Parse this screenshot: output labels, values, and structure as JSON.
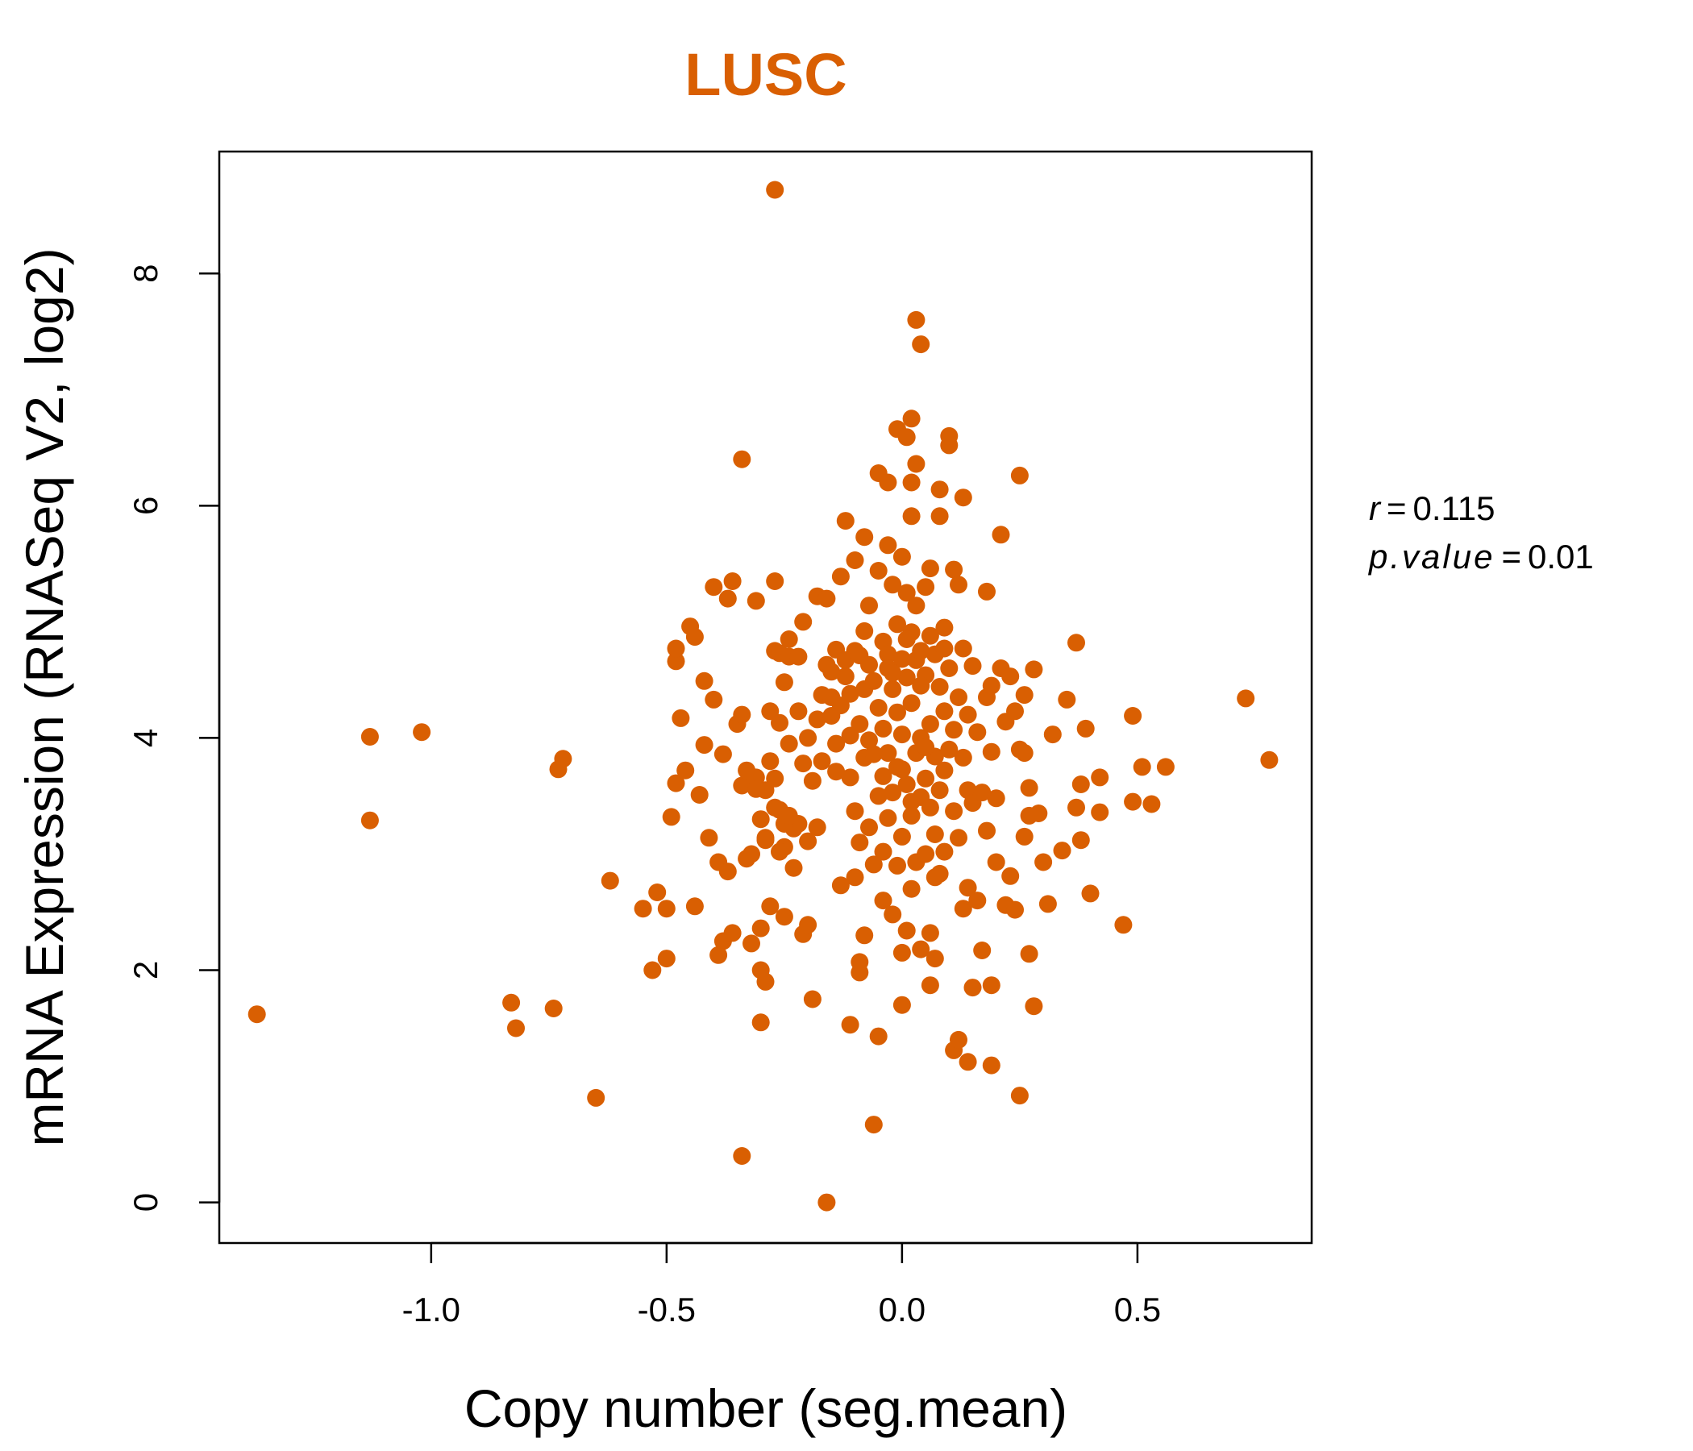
{
  "chart_data": {
    "type": "scatter",
    "title": "LUSC",
    "xlabel": "Copy number (seg.mean)",
    "ylabel": "mRNA Expression (RNASeq V2, log2)",
    "xlim": [
      -1.45,
      0.87
    ],
    "ylim": [
      -0.35,
      9.05
    ],
    "x_ticks": [
      -1.0,
      -0.5,
      0.0,
      0.5
    ],
    "x_tick_labels": [
      "-1.0",
      "-0.5",
      "0.0",
      "0.5"
    ],
    "y_ticks": [
      0,
      2,
      4,
      6,
      8
    ],
    "y_tick_labels": [
      "0",
      "2",
      "4",
      "6",
      "8"
    ],
    "grid": false,
    "legend": "none",
    "color": "#d95f02",
    "annotations": {
      "r_label": "r",
      "r_value": "0.115",
      "p_label": "p.value",
      "p_value": "0.01"
    },
    "points": [
      [
        -1.37,
        1.62
      ],
      [
        -1.13,
        4.01
      ],
      [
        -1.13,
        3.29
      ],
      [
        -1.02,
        4.05
      ],
      [
        -0.83,
        1.72
      ],
      [
        -0.82,
        1.5
      ],
      [
        -0.74,
        1.67
      ],
      [
        -0.73,
        3.73
      ],
      [
        -0.72,
        3.82
      ],
      [
        -0.65,
        0.9
      ],
      [
        -0.62,
        2.77
      ],
      [
        -0.55,
        2.53
      ],
      [
        -0.53,
        2.0
      ],
      [
        -0.52,
        2.67
      ],
      [
        -0.5,
        2.1
      ],
      [
        -0.5,
        2.53
      ],
      [
        -0.49,
        3.32
      ],
      [
        -0.48,
        3.61
      ],
      [
        -0.48,
        4.66
      ],
      [
        -0.48,
        4.77
      ],
      [
        -0.47,
        4.17
      ],
      [
        -0.46,
        3.72
      ],
      [
        -0.45,
        4.96
      ],
      [
        -0.44,
        4.87
      ],
      [
        -0.44,
        2.55
      ],
      [
        -0.43,
        3.51
      ],
      [
        -0.42,
        3.94
      ],
      [
        -0.42,
        4.49
      ],
      [
        -0.41,
        3.14
      ],
      [
        -0.4,
        5.3
      ],
      [
        -0.4,
        4.33
      ],
      [
        -0.39,
        2.13
      ],
      [
        -0.39,
        2.93
      ],
      [
        -0.38,
        2.25
      ],
      [
        -0.38,
        3.86
      ],
      [
        -0.37,
        5.2
      ],
      [
        -0.37,
        2.85
      ],
      [
        -0.36,
        5.35
      ],
      [
        -0.36,
        2.32
      ],
      [
        -0.35,
        4.12
      ],
      [
        -0.34,
        6.4
      ],
      [
        -0.34,
        3.59
      ],
      [
        -0.34,
        4.2
      ],
      [
        -0.33,
        2.96
      ],
      [
        -0.33,
        3.72
      ],
      [
        -0.32,
        3.0
      ],
      [
        -0.32,
        2.23
      ],
      [
        -0.31,
        5.18
      ],
      [
        -0.31,
        3.66
      ],
      [
        -0.3,
        3.3
      ],
      [
        -0.3,
        2.36
      ],
      [
        -0.3,
        1.55
      ],
      [
        -0.3,
        2.0
      ],
      [
        -0.29,
        1.9
      ],
      [
        -0.29,
        3.14
      ],
      [
        -0.29,
        3.55
      ],
      [
        -0.28,
        3.8
      ],
      [
        -0.28,
        4.23
      ],
      [
        -0.28,
        2.55
      ],
      [
        -0.27,
        8.72
      ],
      [
        -0.27,
        5.35
      ],
      [
        -0.27,
        4.75
      ],
      [
        -0.27,
        3.65
      ],
      [
        -0.26,
        4.13
      ],
      [
        -0.26,
        4.73
      ],
      [
        -0.26,
        3.38
      ],
      [
        -0.25,
        2.46
      ],
      [
        -0.25,
        4.48
      ],
      [
        -0.25,
        3.06
      ],
      [
        -0.24,
        4.85
      ],
      [
        -0.24,
        4.7
      ],
      [
        -0.24,
        3.95
      ],
      [
        -0.23,
        3.22
      ],
      [
        -0.23,
        2.88
      ],
      [
        -0.22,
        4.23
      ],
      [
        -0.22,
        3.26
      ],
      [
        -0.21,
        5.0
      ],
      [
        -0.21,
        3.78
      ],
      [
        -0.21,
        2.31
      ],
      [
        -0.2,
        4.0
      ],
      [
        -0.2,
        3.11
      ],
      [
        -0.2,
        2.39
      ],
      [
        -0.19,
        1.75
      ],
      [
        -0.19,
        3.63
      ],
      [
        -0.18,
        5.22
      ],
      [
        -0.18,
        4.16
      ],
      [
        -0.18,
        3.23
      ],
      [
        -0.17,
        4.37
      ],
      [
        -0.17,
        3.8
      ],
      [
        -0.16,
        4.63
      ],
      [
        -0.16,
        5.2
      ],
      [
        -0.16,
        0.0
      ],
      [
        -0.15,
        4.19
      ],
      [
        -0.15,
        4.35
      ],
      [
        -0.14,
        3.71
      ],
      [
        -0.14,
        3.95
      ],
      [
        -0.14,
        4.76
      ],
      [
        -0.13,
        5.39
      ],
      [
        -0.13,
        4.28
      ],
      [
        -0.13,
        2.73
      ],
      [
        -0.12,
        5.87
      ],
      [
        -0.12,
        4.67
      ],
      [
        -0.12,
        4.53
      ],
      [
        -0.11,
        4.02
      ],
      [
        -0.11,
        4.38
      ],
      [
        -0.11,
        3.66
      ],
      [
        -0.11,
        1.53
      ],
      [
        -0.1,
        5.53
      ],
      [
        -0.1,
        4.75
      ],
      [
        -0.1,
        3.37
      ],
      [
        -0.1,
        2.8
      ],
      [
        -0.09,
        4.71
      ],
      [
        -0.09,
        3.1
      ],
      [
        -0.09,
        1.98
      ],
      [
        -0.09,
        2.07
      ],
      [
        -0.08,
        5.73
      ],
      [
        -0.08,
        4.92
      ],
      [
        -0.08,
        4.42
      ],
      [
        -0.08,
        3.83
      ],
      [
        -0.08,
        2.3
      ],
      [
        -0.07,
        5.14
      ],
      [
        -0.07,
        4.63
      ],
      [
        -0.07,
        3.98
      ],
      [
        -0.07,
        3.23
      ],
      [
        -0.06,
        4.49
      ],
      [
        -0.06,
        2.91
      ],
      [
        -0.06,
        0.67
      ],
      [
        -0.05,
        6.28
      ],
      [
        -0.05,
        5.44
      ],
      [
        -0.05,
        4.26
      ],
      [
        -0.05,
        3.5
      ],
      [
        -0.05,
        1.43
      ],
      [
        -0.04,
        4.83
      ],
      [
        -0.04,
        4.08
      ],
      [
        -0.04,
        3.67
      ],
      [
        -0.04,
        3.02
      ],
      [
        -0.04,
        2.6
      ],
      [
        -0.03,
        6.2
      ],
      [
        -0.03,
        5.66
      ],
      [
        -0.03,
        4.72
      ],
      [
        -0.03,
        3.87
      ],
      [
        -0.03,
        3.31
      ],
      [
        -0.02,
        5.32
      ],
      [
        -0.02,
        4.42
      ],
      [
        -0.02,
        3.53
      ],
      [
        -0.02,
        2.48
      ],
      [
        -0.01,
        6.66
      ],
      [
        -0.01,
        4.98
      ],
      [
        -0.01,
        4.22
      ],
      [
        -0.01,
        3.75
      ],
      [
        -0.01,
        2.9
      ],
      [
        0.0,
        5.56
      ],
      [
        0.0,
        4.68
      ],
      [
        0.0,
        4.03
      ],
      [
        0.0,
        3.15
      ],
      [
        0.0,
        2.15
      ],
      [
        0.0,
        1.7
      ],
      [
        0.01,
        6.59
      ],
      [
        0.01,
        5.25
      ],
      [
        0.01,
        4.52
      ],
      [
        0.01,
        3.6
      ],
      [
        0.01,
        2.34
      ],
      [
        0.02,
        6.75
      ],
      [
        0.02,
        6.2
      ],
      [
        0.02,
        5.91
      ],
      [
        0.02,
        4.91
      ],
      [
        0.02,
        4.3
      ],
      [
        0.02,
        3.33
      ],
      [
        0.02,
        2.7
      ],
      [
        0.03,
        7.6
      ],
      [
        0.03,
        6.36
      ],
      [
        0.03,
        5.14
      ],
      [
        0.03,
        4.67
      ],
      [
        0.03,
        3.87
      ],
      [
        0.03,
        2.93
      ],
      [
        0.04,
        7.39
      ],
      [
        0.04,
        4.0
      ],
      [
        0.04,
        3.49
      ],
      [
        0.04,
        2.18
      ],
      [
        0.05,
        5.3
      ],
      [
        0.05,
        4.54
      ],
      [
        0.05,
        3.65
      ],
      [
        0.05,
        3.0
      ],
      [
        0.06,
        5.46
      ],
      [
        0.06,
        4.88
      ],
      [
        0.06,
        4.12
      ],
      [
        0.06,
        3.4
      ],
      [
        0.06,
        2.32
      ],
      [
        0.06,
        1.87
      ],
      [
        0.07,
        4.72
      ],
      [
        0.07,
        3.84
      ],
      [
        0.07,
        3.17
      ],
      [
        0.07,
        2.1
      ],
      [
        0.08,
        6.14
      ],
      [
        0.08,
        5.91
      ],
      [
        0.08,
        4.44
      ],
      [
        0.08,
        3.55
      ],
      [
        0.08,
        2.83
      ],
      [
        0.09,
        4.95
      ],
      [
        0.09,
        4.23
      ],
      [
        0.09,
        3.72
      ],
      [
        0.09,
        3.02
      ],
      [
        0.1,
        6.52
      ],
      [
        0.1,
        6.6
      ],
      [
        0.1,
        4.6
      ],
      [
        0.1,
        3.9
      ],
      [
        0.11,
        5.45
      ],
      [
        0.11,
        4.07
      ],
      [
        0.11,
        3.37
      ],
      [
        0.11,
        1.31
      ],
      [
        0.12,
        5.32
      ],
      [
        0.12,
        4.35
      ],
      [
        0.12,
        3.14
      ],
      [
        0.12,
        1.4
      ],
      [
        0.13,
        6.07
      ],
      [
        0.13,
        4.77
      ],
      [
        0.13,
        3.83
      ],
      [
        0.13,
        2.53
      ],
      [
        0.14,
        4.2
      ],
      [
        0.14,
        3.55
      ],
      [
        0.14,
        2.71
      ],
      [
        0.14,
        1.21
      ],
      [
        0.15,
        4.62
      ],
      [
        0.15,
        3.44
      ],
      [
        0.15,
        1.85
      ],
      [
        0.16,
        4.05
      ],
      [
        0.16,
        2.6
      ],
      [
        0.17,
        3.53
      ],
      [
        0.17,
        2.17
      ],
      [
        0.18,
        4.35
      ],
      [
        0.18,
        5.26
      ],
      [
        0.18,
        3.2
      ],
      [
        0.19,
        4.45
      ],
      [
        0.19,
        3.88
      ],
      [
        0.19,
        1.87
      ],
      [
        0.19,
        1.18
      ],
      [
        0.2,
        3.48
      ],
      [
        0.2,
        2.93
      ],
      [
        0.21,
        5.75
      ],
      [
        0.21,
        4.6
      ],
      [
        0.22,
        2.56
      ],
      [
        0.22,
        4.14
      ],
      [
        0.23,
        2.81
      ],
      [
        0.23,
        4.53
      ],
      [
        0.24,
        4.23
      ],
      [
        0.24,
        2.52
      ],
      [
        0.25,
        3.9
      ],
      [
        0.25,
        0.92
      ],
      [
        0.25,
        6.26
      ],
      [
        0.26,
        3.15
      ],
      [
        0.26,
        3.87
      ],
      [
        0.26,
        4.37
      ],
      [
        0.27,
        2.14
      ],
      [
        0.27,
        3.33
      ],
      [
        0.27,
        3.57
      ],
      [
        0.28,
        4.59
      ],
      [
        0.28,
        1.69
      ],
      [
        0.29,
        3.35
      ],
      [
        0.3,
        2.93
      ],
      [
        0.31,
        2.57
      ],
      [
        0.32,
        4.03
      ],
      [
        0.34,
        3.03
      ],
      [
        0.35,
        4.33
      ],
      [
        0.37,
        3.4
      ],
      [
        0.37,
        4.82
      ],
      [
        0.38,
        3.6
      ],
      [
        0.38,
        3.12
      ],
      [
        0.39,
        4.08
      ],
      [
        0.4,
        2.66
      ],
      [
        0.42,
        3.66
      ],
      [
        0.42,
        3.36
      ],
      [
        0.47,
        2.39
      ],
      [
        0.49,
        4.19
      ],
      [
        0.49,
        3.45
      ],
      [
        0.51,
        3.75
      ],
      [
        0.53,
        3.43
      ],
      [
        0.56,
        3.75
      ],
      [
        0.73,
        4.34
      ],
      [
        0.78,
        3.81
      ],
      [
        -0.34,
        0.4
      ],
      [
        -0.22,
        4.7
      ],
      [
        -0.09,
        4.12
      ],
      [
        -0.06,
        3.86
      ],
      [
        0.04,
        4.45
      ],
      [
        0.05,
        3.92
      ],
      [
        0.09,
        4.77
      ],
      [
        -0.15,
        4.57
      ],
      [
        -0.03,
        4.6
      ],
      [
        0.02,
        3.45
      ],
      [
        0.07,
        2.8
      ],
      [
        -0.27,
        3.4
      ],
      [
        -0.25,
        3.26
      ],
      [
        -0.31,
        3.56
      ],
      [
        -0.24,
        3.33
      ],
      [
        -0.29,
        3.12
      ],
      [
        -0.26,
        3.02
      ],
      [
        0.0,
        3.73
      ],
      [
        0.01,
        4.85
      ],
      [
        -0.02,
        4.56
      ],
      [
        0.04,
        4.75
      ]
    ]
  }
}
